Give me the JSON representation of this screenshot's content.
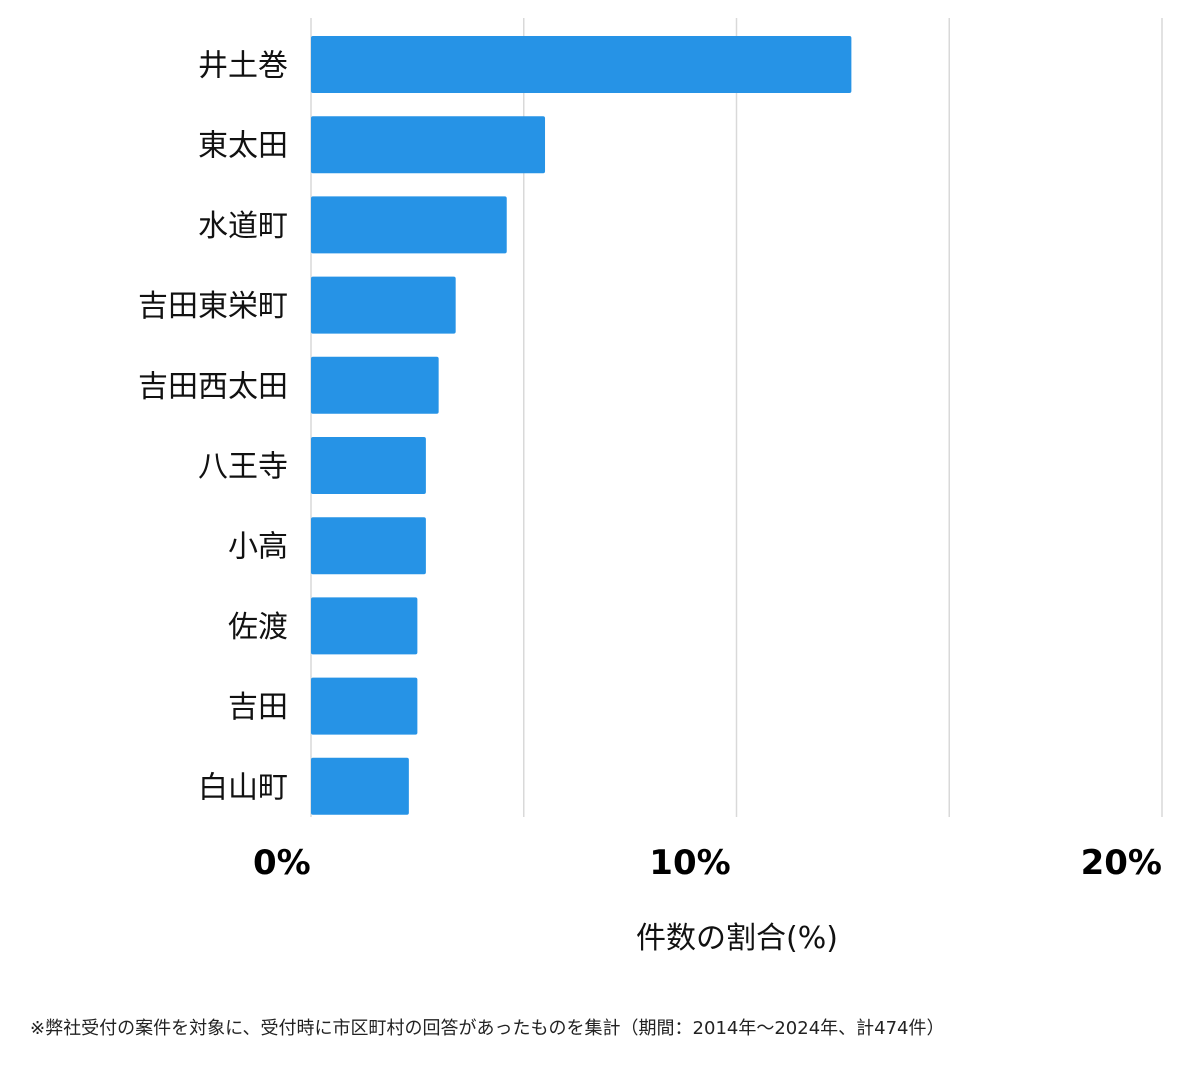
{
  "chart_data": {
    "type": "bar",
    "orientation": "horizontal",
    "categories": [
      "井土巻",
      "東太田",
      "水道町",
      "吉田東栄町",
      "吉田西太田",
      "八王寺",
      "小高",
      "佐渡",
      "吉田",
      "白山町"
    ],
    "values": [
      12.7,
      5.5,
      4.6,
      3.4,
      3.0,
      2.7,
      2.7,
      2.5,
      2.5,
      2.3
    ],
    "xlim": [
      0,
      20
    ],
    "x_ticks": [
      "0%",
      "10%",
      "20%"
    ],
    "xlabel": "件数の割合(%)",
    "ylabel": "",
    "title": "",
    "grid": true,
    "bar_color": "#2693e6",
    "grid_color": "#d9d9d9"
  },
  "footnote": "※弊社受付の案件を対象に、受付時に市区町村の回答があったものを集計（期間：2014年～2024年、計474件）"
}
